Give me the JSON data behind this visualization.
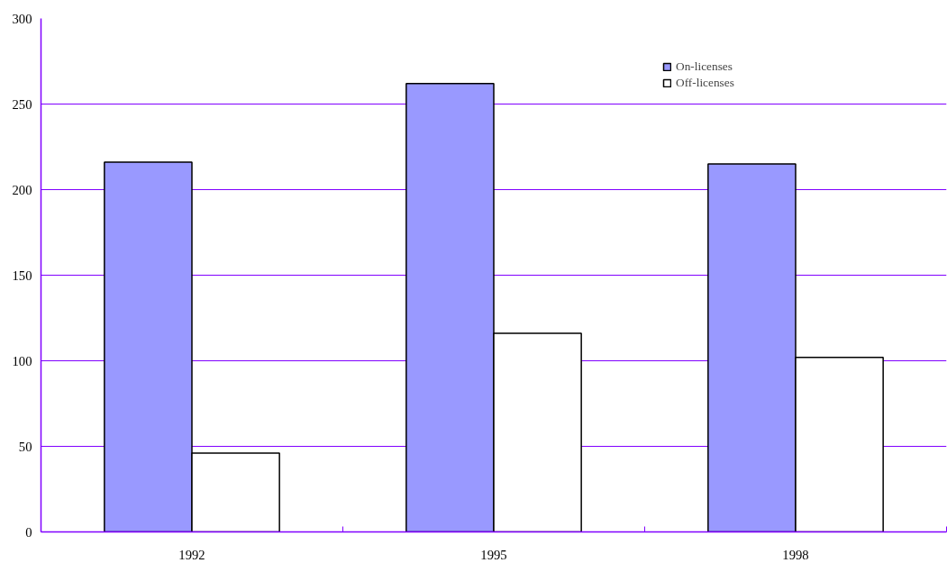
{
  "chart_data": {
    "type": "bar",
    "categories": [
      "1992",
      "1995",
      "1998"
    ],
    "series": [
      {
        "name": "On-licenses",
        "color": "#9999ff",
        "values": [
          216,
          262,
          215
        ]
      },
      {
        "name": "Off-licenses",
        "color": "#ffffff",
        "values": [
          46,
          116,
          102
        ]
      }
    ],
    "ylim": [
      0,
      300
    ],
    "yticks": [
      0,
      50,
      100,
      150,
      200,
      250,
      300
    ],
    "grid": "y",
    "legend": "top right"
  }
}
